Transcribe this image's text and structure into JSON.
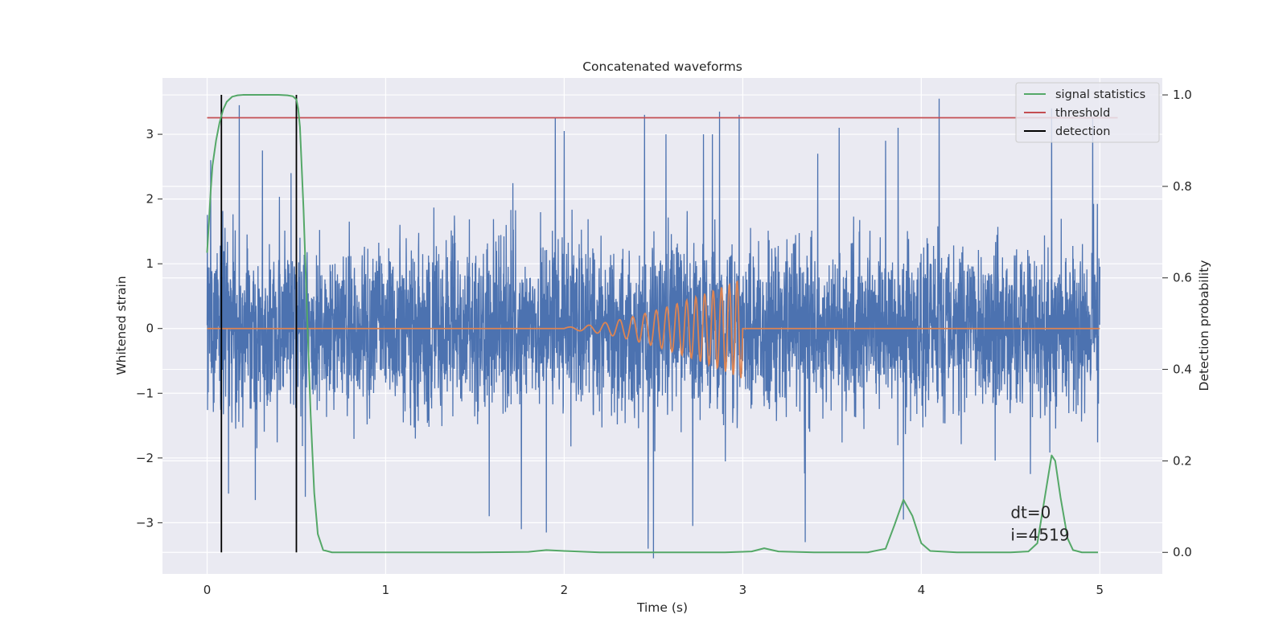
{
  "chart_data": {
    "type": "line",
    "title": "Concatenated waveforms",
    "xlabel": "Time (s)",
    "ylabel": "Whitened strain",
    "ylabel_right": "Detection probability",
    "xlim": [
      -0.25,
      5.35
    ],
    "ylim": [
      -3.79,
      3.87
    ],
    "ylim_right": [
      -0.047,
      1.037
    ],
    "xticks": [
      0,
      1,
      2,
      3,
      4,
      5
    ],
    "yticks": [
      -3,
      -2,
      -1,
      0,
      1,
      2,
      3
    ],
    "yticks_right": [
      0.0,
      0.2,
      0.4,
      0.6,
      0.8,
      1.0
    ],
    "xtick_labels": [
      "0",
      "1",
      "2",
      "3",
      "4",
      "5"
    ],
    "ytick_labels": [
      "−3",
      "−2",
      "−1",
      "0",
      "1",
      "2",
      "3"
    ],
    "ytick_right_labels": [
      "0.0",
      "0.2",
      "0.4",
      "0.6",
      "0.8",
      "1.0"
    ],
    "grid": true,
    "legend_position": "top-right",
    "legend": [
      {
        "label": "signal statistics",
        "color": "#55a868"
      },
      {
        "label": "threshold",
        "color": "#c44e52"
      },
      {
        "label": "detection",
        "color": "#000000"
      }
    ],
    "colors": {
      "noise": "#4c72b0",
      "waveform": "#dd8452",
      "statistic": "#55a868",
      "threshold": "#c44e52",
      "detection": "#000000",
      "background": "#eaeaf2"
    },
    "noise": {
      "x_range": [
        0,
        5
      ],
      "sigma": 0.65,
      "peaks_pos": [
        [
          0.02,
          2.6
        ],
        [
          0.08,
          2.5
        ],
        [
          0.18,
          3.45
        ],
        [
          0.31,
          2.75
        ],
        [
          0.47,
          2.4
        ],
        [
          1.95,
          3.25
        ],
        [
          2.0,
          3.05
        ],
        [
          2.45,
          3.3
        ],
        [
          2.57,
          3.0
        ],
        [
          2.78,
          3.0
        ],
        [
          2.83,
          3.0
        ],
        [
          2.87,
          3.35
        ],
        [
          2.98,
          3.3
        ],
        [
          3.35,
          2.7
        ],
        [
          3.42,
          2.7
        ],
        [
          3.54,
          3.1
        ],
        [
          3.8,
          2.9
        ],
        [
          3.87,
          3.1
        ],
        [
          4.1,
          3.55
        ],
        [
          4.73,
          3.4
        ],
        [
          4.96,
          3.25
        ]
      ],
      "peaks_neg": [
        [
          0.12,
          -2.55
        ],
        [
          0.27,
          -2.65
        ],
        [
          0.5,
          -3.0
        ],
        [
          0.55,
          -2.6
        ],
        [
          1.58,
          -2.9
        ],
        [
          1.76,
          -3.1
        ],
        [
          1.9,
          -3.15
        ],
        [
          2.47,
          -3.4
        ],
        [
          2.5,
          -3.55
        ],
        [
          2.72,
          -3.05
        ],
        [
          3.35,
          -3.3
        ],
        [
          3.9,
          -2.95
        ]
      ]
    },
    "waveform": {
      "start": 2.0,
      "end": 3.0,
      "f0": 8,
      "f1": 24,
      "amp_start": 0.02,
      "amp_end": 0.78
    },
    "signal_statistics": {
      "x": [
        0,
        0.01,
        0.02,
        0.03,
        0.05,
        0.07,
        0.09,
        0.11,
        0.14,
        0.17,
        0.2,
        0.25,
        0.3,
        0.35,
        0.4,
        0.45,
        0.48,
        0.5,
        0.51,
        0.52,
        0.54,
        0.56,
        0.58,
        0.6,
        0.62,
        0.65,
        0.7,
        1.0,
        1.5,
        1.8,
        1.9,
        2.0,
        2.2,
        2.5,
        2.9,
        3.05,
        3.12,
        3.2,
        3.4,
        3.7,
        3.8,
        3.85,
        3.9,
        3.95,
        4.0,
        4.05,
        4.2,
        4.5,
        4.6,
        4.65,
        4.7,
        4.73,
        4.75,
        4.78,
        4.82,
        4.85,
        4.9,
        4.99
      ],
      "y": [
        0.655,
        0.72,
        0.79,
        0.845,
        0.9,
        0.94,
        0.968,
        0.985,
        0.996,
        0.999,
        1.0,
        1.0,
        1.0,
        1.0,
        1.0,
        0.999,
        0.997,
        0.99,
        0.97,
        0.93,
        0.75,
        0.52,
        0.3,
        0.13,
        0.04,
        0.005,
        0.0,
        0.0,
        0.0,
        0.001,
        0.005,
        0.003,
        0.0,
        0.0,
        0.0,
        0.002,
        0.009,
        0.002,
        0.0,
        0.0,
        0.008,
        0.06,
        0.115,
        0.08,
        0.02,
        0.003,
        0.0,
        0.0,
        0.002,
        0.02,
        0.14,
        0.212,
        0.2,
        0.12,
        0.03,
        0.005,
        0.0,
        0.0
      ]
    },
    "threshold": 0.95,
    "threshold_x": [
      0,
      5.1
    ],
    "detections": [
      0.08,
      0.5
    ],
    "annotations": [
      "dt=0",
      "i=4519"
    ],
    "annotation_pos": [
      4.5,
      -2.93
    ]
  }
}
